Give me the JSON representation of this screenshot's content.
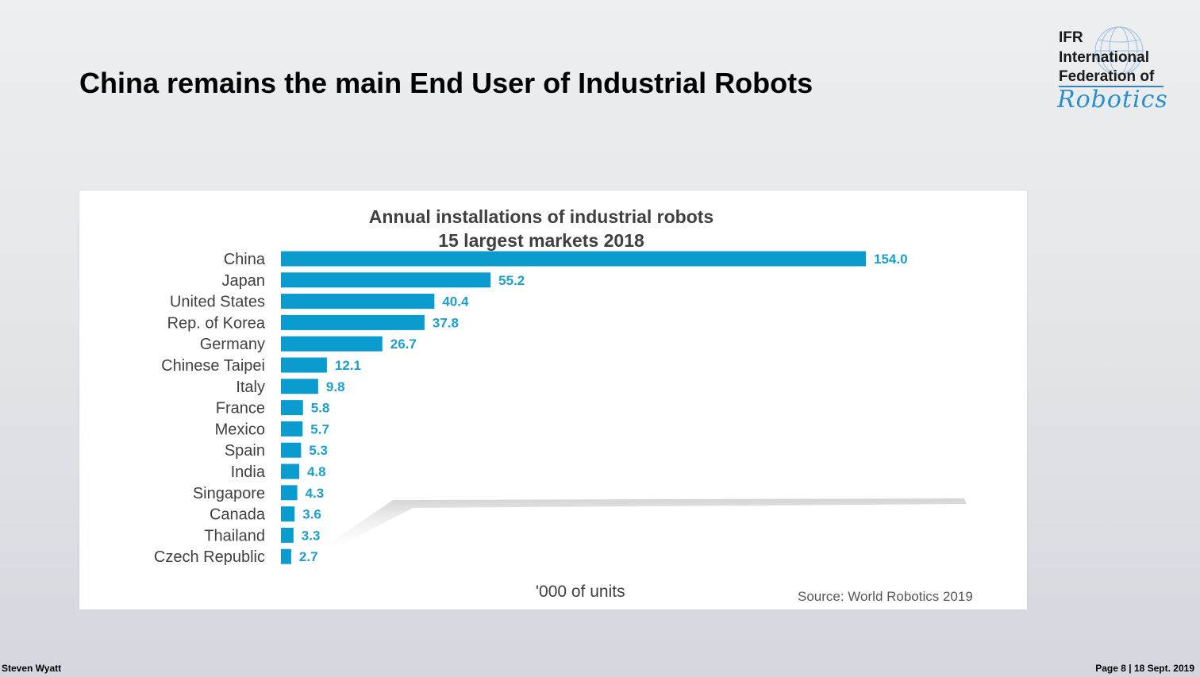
{
  "slide": {
    "title": "China remains the main End User of Industrial Robots",
    "footer_left": "Steven Wyatt",
    "footer_right": "Page 8 | 18 Sept. 2019"
  },
  "logo": {
    "line1": "IFR",
    "line2": "International",
    "line3": "Federation of",
    "script": "Robotics",
    "color": "#2a8fd0"
  },
  "chart_data": {
    "type": "bar",
    "orientation": "horizontal",
    "title_line1": "Annual installations of industrial robots",
    "title_line2": "15 largest markets 2018",
    "categories": [
      "China",
      "Japan",
      "United States",
      "Rep. of Korea",
      "Germany",
      "Chinese Taipei",
      "Italy",
      "France",
      "Mexico",
      "Spain",
      "India",
      "Singapore",
      "Canada",
      "Thailand",
      "Czech Republic"
    ],
    "values": [
      154.0,
      55.2,
      40.4,
      37.8,
      26.7,
      12.1,
      9.8,
      5.8,
      5.7,
      5.3,
      4.8,
      4.3,
      3.6,
      3.3,
      2.7
    ],
    "value_labels": [
      "154.0",
      "55.2",
      "40.4",
      "37.8",
      "26.7",
      "12.1",
      "9.8",
      "5.8",
      "5.7",
      "5.3",
      "4.8",
      "4.3",
      "3.6",
      "3.3",
      "2.7"
    ],
    "xlabel": "'000 of units",
    "xlim": [
      0,
      154
    ],
    "bar_color": "#0b9ccf",
    "label_color": "#1a9fd2",
    "grid": false,
    "legend": "none",
    "source": "Source: World Robotics 2019"
  }
}
